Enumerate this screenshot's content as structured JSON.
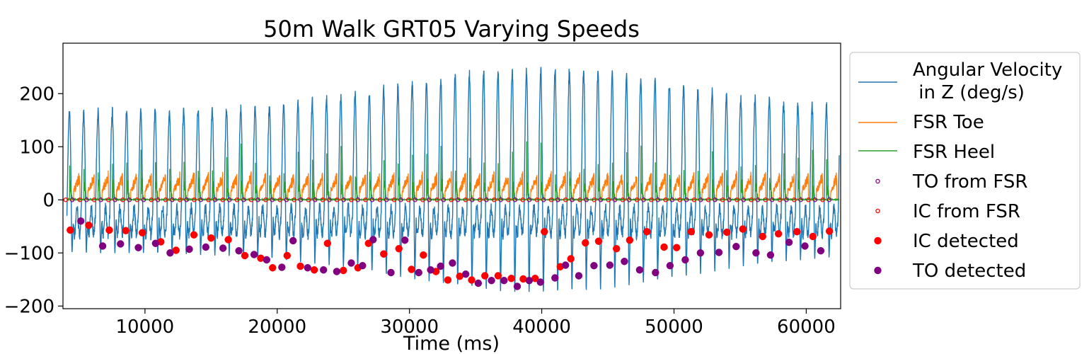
{
  "chart_data": {
    "type": "line",
    "title": "50m Walk GRT05 Varying Speeds",
    "xlabel": "Time (ms)",
    "ylabel": "",
    "xlim": [
      3800,
      62600
    ],
    "ylim": [
      -205,
      295
    ],
    "xticks": [
      10000,
      20000,
      30000,
      40000,
      50000,
      60000
    ],
    "xtick_labels": [
      "10000",
      "20000",
      "30000",
      "40000",
      "50000",
      "60000"
    ],
    "yticks": [
      -200,
      -100,
      0,
      100,
      200
    ],
    "ytick_labels": [
      "−200",
      "−100",
      "0",
      "100",
      "200"
    ],
    "grid": false,
    "legend_position": "outside-right",
    "series": [
      {
        "name": "Angular Velocity\n in Z (deg/s)",
        "kind": "line",
        "color": "#1f77b4",
        "gyro": {
          "start": 4100,
          "end": 62500,
          "period": 1080,
          "peak_base": 165,
          "peak_mid": 245,
          "peak_max": 270,
          "valley_base": -100,
          "valley_mid": -175,
          "valley_min": -195
        }
      },
      {
        "name": "FSR Toe",
        "kind": "line",
        "color": "#ff7f0e",
        "fsr": {
          "start": 4100,
          "end": 62500,
          "period": 1080,
          "peak": 55
        }
      },
      {
        "name": "FSR Heel",
        "kind": "line",
        "color": "#2ca02c",
        "fsr": {
          "start": 4100,
          "end": 62500,
          "period": 1080,
          "peak": 100,
          "peak_max": 195
        }
      },
      {
        "name": "TO from FSR",
        "kind": "open-marker",
        "color": "#800080",
        "y": 0,
        "x_range": [
          4500,
          62000
        ],
        "spacing": 1080
      },
      {
        "name": "IC from FSR",
        "kind": "open-marker",
        "color": "#ff0000",
        "y": 0,
        "x_range": [
          4000,
          61500
        ],
        "spacing": 1080
      },
      {
        "name": "IC detected",
        "kind": "marker",
        "color": "#ff0000",
        "points": [
          [
            4350,
            -57
          ],
          [
            5750,
            -48
          ],
          [
            7300,
            -57
          ],
          [
            8550,
            -58
          ],
          [
            9800,
            -62
          ],
          [
            11200,
            -79
          ],
          [
            12350,
            -95
          ],
          [
            13700,
            -66
          ],
          [
            15000,
            -72
          ],
          [
            16300,
            -75
          ],
          [
            17550,
            -105
          ],
          [
            18750,
            -110
          ],
          [
            19650,
            -128
          ],
          [
            20750,
            -105
          ],
          [
            21750,
            -125
          ],
          [
            22800,
            -132
          ],
          [
            23800,
            -82
          ],
          [
            25000,
            -133
          ],
          [
            26100,
            -128
          ],
          [
            26900,
            -82
          ],
          [
            28050,
            -102
          ],
          [
            29200,
            -92
          ],
          [
            30150,
            -131
          ],
          [
            31050,
            -104
          ],
          [
            32000,
            -135
          ],
          [
            32900,
            -151
          ],
          [
            33800,
            -144
          ],
          [
            34700,
            -151
          ],
          [
            35700,
            -143
          ],
          [
            36700,
            -143
          ],
          [
            37700,
            -148
          ],
          [
            38600,
            -149
          ],
          [
            39500,
            -148
          ],
          [
            40200,
            -60
          ],
          [
            41400,
            -126
          ],
          [
            42200,
            -111
          ],
          [
            43300,
            -81
          ],
          [
            44300,
            -78
          ],
          [
            45650,
            -92
          ],
          [
            46650,
            -76
          ],
          [
            47950,
            -60
          ],
          [
            49250,
            -89
          ],
          [
            50200,
            -90
          ],
          [
            51300,
            -60
          ],
          [
            52650,
            -66
          ],
          [
            54000,
            -61
          ],
          [
            55200,
            -55
          ],
          [
            56700,
            -69
          ],
          [
            57900,
            -64
          ],
          [
            59300,
            -60
          ],
          [
            60500,
            -69
          ],
          [
            61750,
            -59
          ]
        ]
      },
      {
        "name": "TO detected",
        "kind": "marker",
        "color": "#800080",
        "points": [
          [
            5150,
            -40
          ],
          [
            6800,
            -87
          ],
          [
            8150,
            -83
          ],
          [
            9500,
            -90
          ],
          [
            10800,
            -82
          ],
          [
            11900,
            -100
          ],
          [
            13350,
            -93
          ],
          [
            14600,
            -89
          ],
          [
            15900,
            -91
          ],
          [
            17100,
            -96
          ],
          [
            18250,
            -103
          ],
          [
            19200,
            -113
          ],
          [
            20350,
            -127
          ],
          [
            21200,
            -77
          ],
          [
            22300,
            -128
          ],
          [
            23500,
            -132
          ],
          [
            24500,
            -135
          ],
          [
            25600,
            -119
          ],
          [
            26450,
            -124
          ],
          [
            27250,
            -75
          ],
          [
            28600,
            -137
          ],
          [
            29650,
            -76
          ],
          [
            30700,
            -137
          ],
          [
            31600,
            -132
          ],
          [
            32350,
            -125
          ],
          [
            33250,
            -119
          ],
          [
            34250,
            -140
          ],
          [
            35200,
            -157
          ],
          [
            36200,
            -152
          ],
          [
            37150,
            -152
          ],
          [
            38150,
            -163
          ],
          [
            39050,
            -152
          ],
          [
            39900,
            -155
          ],
          [
            41000,
            -147
          ],
          [
            41800,
            -123
          ],
          [
            42800,
            -143
          ],
          [
            43950,
            -124
          ],
          [
            45150,
            -123
          ],
          [
            46250,
            -116
          ],
          [
            47400,
            -132
          ],
          [
            48600,
            -137
          ],
          [
            49700,
            -124
          ],
          [
            50850,
            -113
          ],
          [
            52000,
            -100
          ],
          [
            53400,
            -99
          ],
          [
            54700,
            -88
          ],
          [
            56200,
            -100
          ],
          [
            57300,
            -104
          ],
          [
            58700,
            -80
          ],
          [
            59900,
            -87
          ],
          [
            61100,
            -96
          ]
        ]
      }
    ]
  }
}
